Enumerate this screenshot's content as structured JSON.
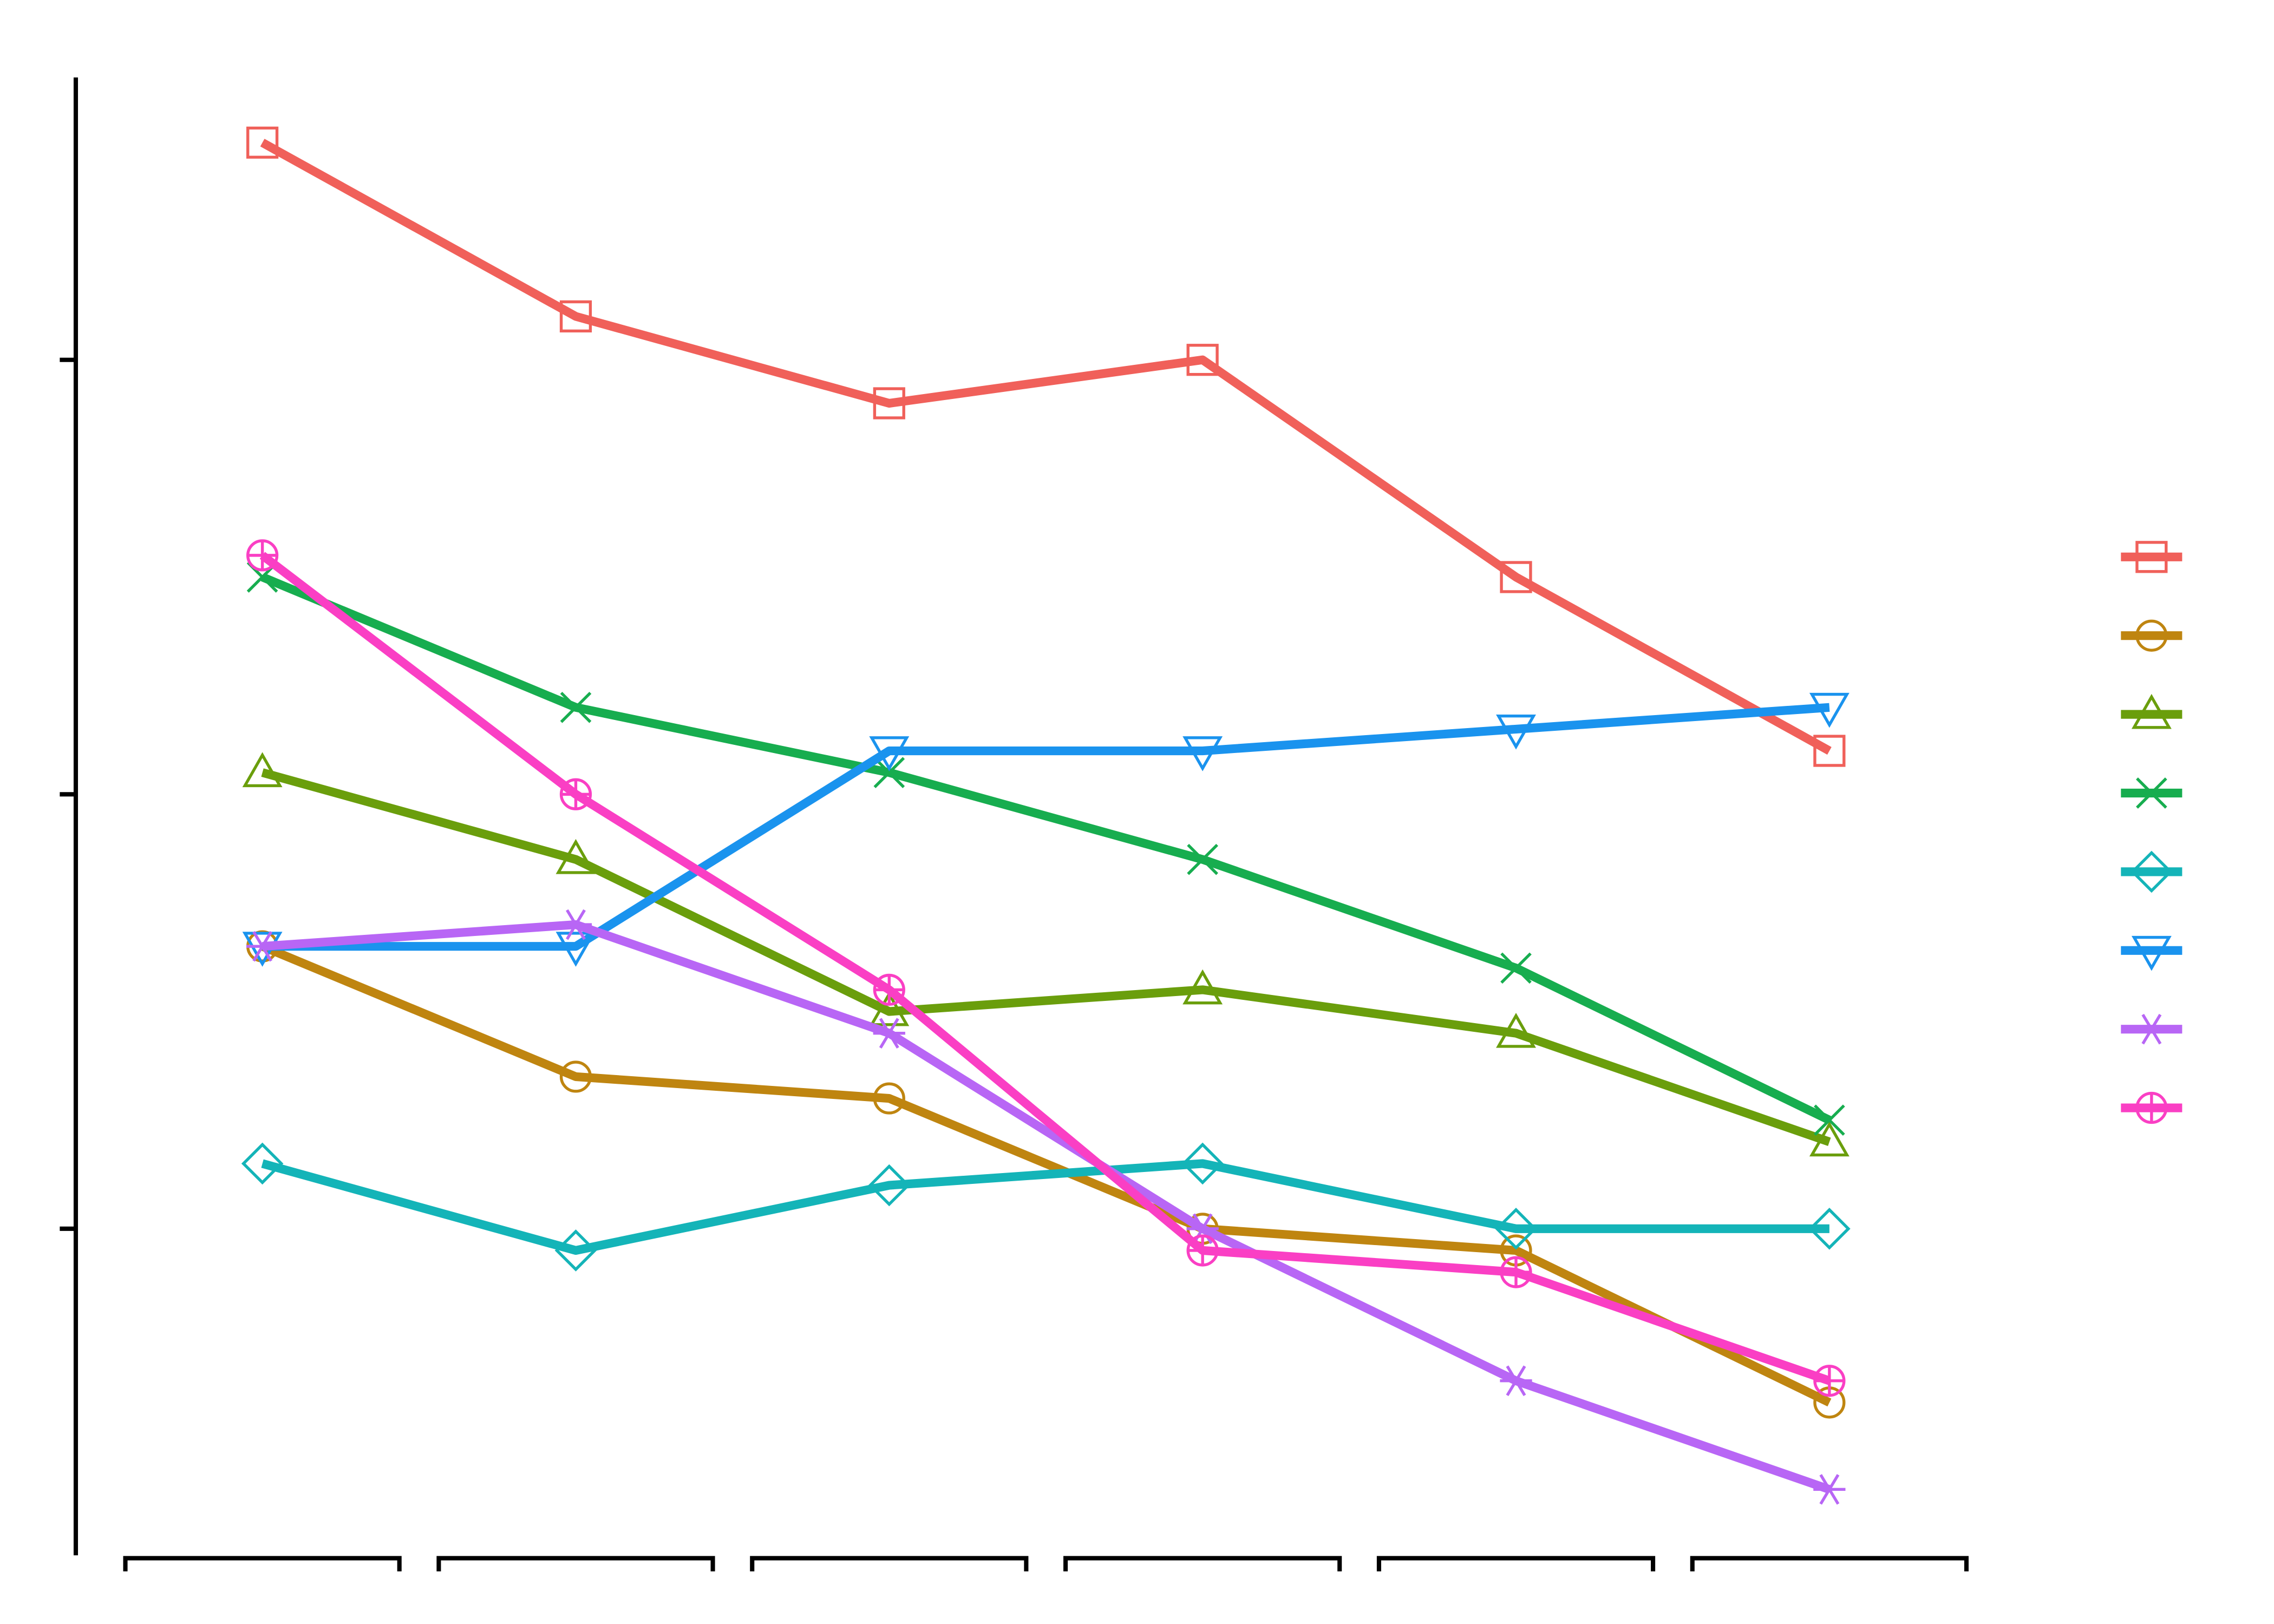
{
  "chart_data": {
    "type": "line",
    "categories": [
      null,
      null,
      null,
      null,
      null,
      null
    ],
    "ylim": [
      0.25,
      3.65
    ],
    "yticks": [
      1,
      2,
      3
    ],
    "legend": "right",
    "series": [
      {
        "color": "#f0605a",
        "marker": "square",
        "values": [
          3.5,
          3.1,
          2.9,
          3.0,
          2.5,
          2.1
        ]
      },
      {
        "color": "#bf8510",
        "marker": "circle",
        "values": [
          1.65,
          1.35,
          1.3,
          1.0,
          0.95,
          0.6
        ]
      },
      {
        "color": "#6a9e0c",
        "marker": "triangle",
        "values": [
          2.05,
          1.85,
          1.5,
          1.55,
          1.45,
          1.2
        ]
      },
      {
        "color": "#17ad4f",
        "marker": "x",
        "values": [
          2.5,
          2.2,
          2.05,
          1.85,
          1.6,
          1.25
        ]
      },
      {
        "color": "#14b4b8",
        "marker": "diamond",
        "values": [
          1.15,
          0.95,
          1.1,
          1.15,
          1.0,
          1.0
        ]
      },
      {
        "color": "#1a93ee",
        "marker": "triangle-down",
        "values": [
          1.65,
          1.65,
          2.1,
          2.1,
          2.15,
          2.2
        ]
      },
      {
        "color": "#b866f5",
        "marker": "asterisk",
        "values": [
          1.65,
          1.7,
          1.45,
          1.0,
          0.65,
          0.4
        ]
      },
      {
        "color": "#fa3fc4",
        "marker": "circle-plus",
        "values": [
          2.55,
          2.0,
          1.55,
          0.95,
          0.9,
          0.65
        ]
      }
    ]
  }
}
